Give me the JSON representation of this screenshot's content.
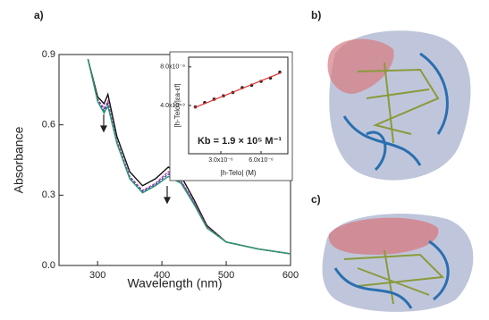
{
  "panel_labels": [
    "a)",
    "b)",
    "c)"
  ],
  "chart_data": [
    {
      "type": "line",
      "xlabel": "Wavelength (nm)",
      "ylabel": "Absorbance",
      "x": [
        285,
        300,
        310,
        316,
        330,
        350,
        370,
        390,
        410,
        430,
        450,
        470,
        500,
        550,
        600
      ],
      "series": [
        {
          "color": "#111111",
          "values": [
            0.88,
            0.72,
            0.69,
            0.73,
            0.55,
            0.4,
            0.34,
            0.37,
            0.42,
            0.38,
            0.28,
            0.17,
            0.1,
            0.07,
            0.05
          ]
        },
        {
          "color": "#c0309a",
          "values": [
            0.88,
            0.71,
            0.67,
            0.7,
            0.53,
            0.38,
            0.32,
            0.35,
            0.4,
            0.36,
            0.27,
            0.165,
            0.1,
            0.07,
            0.05
          ]
        },
        {
          "color": "#3050c0",
          "values": [
            0.88,
            0.705,
            0.66,
            0.69,
            0.525,
            0.375,
            0.315,
            0.345,
            0.39,
            0.355,
            0.265,
            0.16,
            0.1,
            0.07,
            0.05
          ]
        },
        {
          "color": "#2a9a6a",
          "values": [
            0.88,
            0.7,
            0.65,
            0.68,
            0.52,
            0.37,
            0.31,
            0.34,
            0.38,
            0.35,
            0.26,
            0.16,
            0.1,
            0.07,
            0.05
          ]
        }
      ],
      "xlim": [
        240,
        600
      ],
      "xticks": [
        300,
        400,
        500,
        600
      ],
      "ylim": [
        0,
        0.9
      ],
      "yticks": [
        {
          "value": 0,
          "label": "0.0"
        },
        0.3,
        0.6,
        0.9
      ]
    },
    {
      "type": "scatter",
      "xlabel": "|h-Telo| (M)",
      "ylabel": "[h-Telo]/|εa-εf|",
      "annotation": "Kb = 1.9 × 10⁵ M⁻¹",
      "series": [
        {
          "color": "#222222",
          "mode": "markers",
          "x": [
            1.1e-06,
            1.8e-06,
            2.5e-06,
            3.2e-06,
            3.9e-06,
            4.6e-06,
            5.3e-06,
            6e-06,
            6.7e-06,
            7.4e-06
          ],
          "values": [
            3.85e-09,
            4.3e-09,
            4.65e-09,
            5e-09,
            5.35e-09,
            5.85e-09,
            6.1e-09,
            6.5e-09,
            6.85e-09,
            7.45e-09
          ]
        },
        {
          "color": "#e03030",
          "mode": "line",
          "x": [
            1e-06,
            7.5e-06
          ],
          "values": [
            3.75e-09,
            7.4e-09
          ]
        }
      ],
      "xlim": [
        6e-07,
        8e-06
      ],
      "xticks": [
        {
          "value": 3e-06,
          "label": "3.0x10⁻⁶"
        },
        {
          "value": 6e-06,
          "label": "6.0x10⁻⁶"
        }
      ],
      "ylim": [
        -1e-09,
        9e-09
      ],
      "yticks": [
        {
          "value": 4e-09,
          "label": "4.0x10⁻⁹"
        },
        {
          "value": 8e-09,
          "label": "8.0x10⁻⁹"
        }
      ]
    }
  ]
}
